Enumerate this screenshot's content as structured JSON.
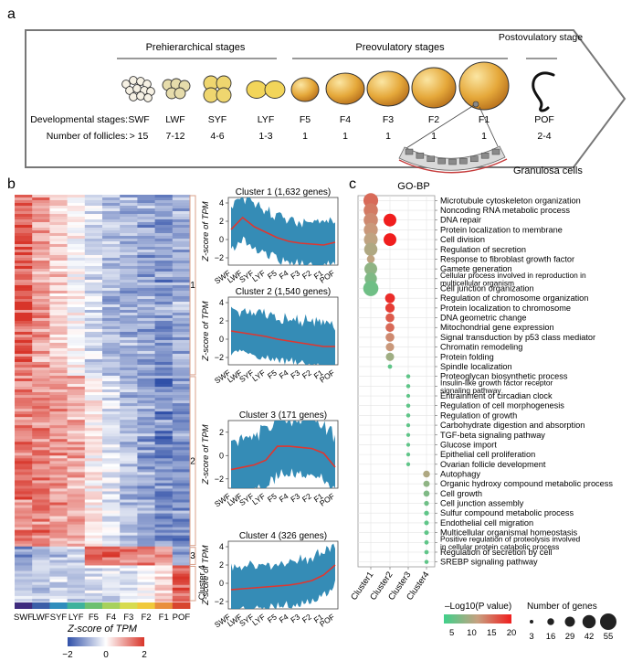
{
  "panels": {
    "a": {
      "label": "a",
      "stage_groups": [
        "Prehierarchical stages",
        "Preovulatory stages",
        "Postovulatory stage"
      ],
      "row_labels": {
        "stages": "Developmental stages:",
        "follicles": "Number of follicles:"
      },
      "stages": [
        "SWF",
        "LWF",
        "SYF",
        "LYF",
        "F5",
        "F4",
        "F3",
        "F2",
        "F1",
        "POF"
      ],
      "follicle_counts": [
        "> 15",
        "7-12",
        "4-6",
        "1-3",
        "1",
        "1",
        "1",
        "1",
        "1",
        "2-4"
      ],
      "inset_label": "Granulosa cells"
    },
    "b": {
      "label": "b",
      "heatmap_x": [
        "SWF",
        "LWF",
        "SYF",
        "LYF",
        "F5",
        "F4",
        "F3",
        "F2",
        "F1",
        "POF"
      ],
      "stage_colors": [
        "#3e2b7e",
        "#3b5ea8",
        "#2f8dbd",
        "#3eb29c",
        "#6cc070",
        "#a7d15c",
        "#d7db4f",
        "#f0c93b",
        "#e98f3c",
        "#d8452e"
      ],
      "cluster_labels": [
        "1",
        "2",
        "3",
        "Cluster 4"
      ],
      "colorbar": {
        "title": "Z-score of TPM",
        "ticks": [
          "−2",
          "0",
          "2"
        ],
        "low": "#3050a8",
        "mid": "#ffffff",
        "high": "#d8352a"
      },
      "mini_ylabel": "Z-score of TPM"
    },
    "c": {
      "label": "c",
      "title": "GO-BP",
      "legend_color_title": "–Log10(P value)",
      "legend_color_ticks": [
        "5",
        "10",
        "15",
        "20"
      ],
      "legend_size_title": "Number of genes",
      "legend_size_ticks": [
        "3",
        "16",
        "29",
        "42",
        "55"
      ]
    }
  },
  "chart_data": [
    {
      "type": "heatmap",
      "columns": [
        "SWF",
        "LWF",
        "SYF",
        "LYF",
        "F5",
        "F4",
        "F3",
        "F2",
        "F1",
        "POF"
      ],
      "clusters": [
        {
          "name": "1",
          "genes": 1632
        },
        {
          "name": "2",
          "genes": 1540
        },
        {
          "name": "3",
          "genes": 171
        },
        {
          "name": "Cluster 4",
          "genes": 326
        }
      ],
      "colorbar_range": [
        -2,
        2
      ]
    },
    {
      "type": "line",
      "title": "Cluster 1 (1,632 genes)",
      "ylabel": "Z-score of TPM",
      "x": [
        "SWF",
        "LWF",
        "SYF",
        "LYF",
        "F5",
        "F4",
        "F3",
        "F2",
        "F1",
        "POF"
      ],
      "y_ticks": [
        "−2",
        "0",
        "2",
        "4"
      ],
      "ylim": [
        -2.8,
        4.6
      ],
      "mean": [
        1.1,
        2.4,
        1.4,
        0.8,
        0.2,
        -0.2,
        -0.4,
        -0.5,
        -0.6,
        -0.3
      ]
    },
    {
      "type": "line",
      "title": "Cluster 2 (1,540 genes)",
      "ylabel": "Z-score of TPM",
      "x": [
        "SWF",
        "LWF",
        "SYF",
        "LYF",
        "F5",
        "F4",
        "F3",
        "F2",
        "F1",
        "POF"
      ],
      "y_ticks": [
        "−2",
        "0",
        "2",
        "4"
      ],
      "ylim": [
        -2.8,
        4.6
      ],
      "mean": [
        0.9,
        0.7,
        0.5,
        0.3,
        0.0,
        -0.2,
        -0.4,
        -0.6,
        -0.8,
        -0.8
      ]
    },
    {
      "type": "line",
      "title": "Cluster 3 (171 genes)",
      "ylabel": "Z-score of TPM",
      "x": [
        "SWF",
        "LWF",
        "SYF",
        "LYF",
        "F5",
        "F4",
        "F3",
        "F2",
        "F1",
        "POF"
      ],
      "y_ticks": [
        "−2",
        "0",
        "2"
      ],
      "ylim": [
        -2.8,
        3.0
      ],
      "mean": [
        -1.2,
        -1.0,
        -0.8,
        -0.4,
        0.8,
        0.8,
        0.7,
        0.6,
        0.2,
        -1.0
      ]
    },
    {
      "type": "line",
      "title": "Cluster 4 (326 genes)",
      "ylabel": "Z-score of TPM",
      "x": [
        "SWF",
        "LWF",
        "SYF",
        "LYF",
        "F5",
        "F4",
        "F3",
        "F2",
        "F1",
        "POF"
      ],
      "y_ticks": [
        "−2",
        "0",
        "2",
        "4"
      ],
      "ylim": [
        -2.8,
        4.6
      ],
      "mean": [
        -0.7,
        -0.6,
        -0.5,
        -0.4,
        -0.3,
        -0.2,
        0.0,
        0.3,
        0.9,
        2.0
      ]
    },
    {
      "type": "scatter",
      "title": "GO-BP",
      "x": [
        "Cluster1",
        "Cluster2",
        "Cluster3",
        "Cluster4"
      ],
      "color_range": [
        3,
        20
      ],
      "size_range": [
        3,
        55
      ],
      "terms": [
        {
          "term": "Microtubule cytoskeleton organization",
          "cluster": "Cluster1",
          "logp": 15,
          "genes": 48
        },
        {
          "term": "Noncoding RNA metabolic process",
          "cluster": "Cluster1",
          "logp": 14,
          "genes": 46
        },
        {
          "term": "DNA repair",
          "cluster": "Cluster1",
          "logp": 13,
          "genes": 46
        },
        {
          "term": "DNA repair",
          "cluster": "Cluster2",
          "logp": 20,
          "genes": 40
        },
        {
          "term": "Protein localization to membrane",
          "cluster": "Cluster1",
          "logp": 12,
          "genes": 45
        },
        {
          "term": "Cell division",
          "cluster": "Cluster1",
          "logp": 11,
          "genes": 44
        },
        {
          "term": "Cell division",
          "cluster": "Cluster2",
          "logp": 20,
          "genes": 40
        },
        {
          "term": "Regulation of secretion",
          "cluster": "Cluster1",
          "logp": 10,
          "genes": 42
        },
        {
          "term": "Response to fibroblast growth factor",
          "cluster": "Cluster1",
          "logp": 11,
          "genes": 20
        },
        {
          "term": "Gamete generation",
          "cluster": "Cluster1",
          "logp": 8,
          "genes": 40
        },
        {
          "term": "Cellular process involved in reproduction in multicellular organism",
          "cluster": "Cluster1",
          "logp": 7,
          "genes": 38
        },
        {
          "term": "Cell junction organization",
          "cluster": "Cluster1",
          "logp": 6,
          "genes": 50
        },
        {
          "term": "Regulation of chromosome organization",
          "cluster": "Cluster2",
          "logp": 19,
          "genes": 28
        },
        {
          "term": "Protein localization to chromosome",
          "cluster": "Cluster2",
          "logp": 18,
          "genes": 26
        },
        {
          "term": "DNA geometric change",
          "cluster": "Cluster2",
          "logp": 16,
          "genes": 24
        },
        {
          "term": "Mitochondrial gene expression",
          "cluster": "Cluster2",
          "logp": 15,
          "genes": 24
        },
        {
          "term": "Signal transduction by p53 class mediator",
          "cluster": "Cluster2",
          "logp": 13,
          "genes": 24
        },
        {
          "term": "Chromatin remodeling",
          "cluster": "Cluster2",
          "logp": 12,
          "genes": 22
        },
        {
          "term": "Protein folding",
          "cluster": "Cluster2",
          "logp": 9,
          "genes": 22
        },
        {
          "term": "Spindle localization",
          "cluster": "Cluster2",
          "logp": 5,
          "genes": 6
        },
        {
          "term": "Proteoglycan biosynthetic process",
          "cluster": "Cluster3",
          "logp": 5,
          "genes": 5
        },
        {
          "term": "Insulin-like growth factor receptor signaling pathway",
          "cluster": "Cluster3",
          "logp": 5,
          "genes": 5
        },
        {
          "term": "Entrainment of circadian clock",
          "cluster": "Cluster3",
          "logp": 5,
          "genes": 4
        },
        {
          "term": "Regulation of cell morphogenesis",
          "cluster": "Cluster3",
          "logp": 5,
          "genes": 5
        },
        {
          "term": "Regulation of growth",
          "cluster": "Cluster3",
          "logp": 5,
          "genes": 5
        },
        {
          "term": "Carbohydrate digestion and absorption",
          "cluster": "Cluster3",
          "logp": 5,
          "genes": 4
        },
        {
          "term": "TGF-beta signaling pathway",
          "cluster": "Cluster3",
          "logp": 5,
          "genes": 4
        },
        {
          "term": "Glucose import",
          "cluster": "Cluster3",
          "logp": 5,
          "genes": 4
        },
        {
          "term": "Epithelial cell proliferation",
          "cluster": "Cluster3",
          "logp": 5,
          "genes": 4
        },
        {
          "term": "Ovarian follicle development",
          "cluster": "Cluster3",
          "logp": 5,
          "genes": 4
        },
        {
          "term": "Autophagy",
          "cluster": "Cluster4",
          "logp": 10,
          "genes": 16
        },
        {
          "term": "Organic hydroxy compound metabolic process",
          "cluster": "Cluster4",
          "logp": 8,
          "genes": 14
        },
        {
          "term": "Cell growth",
          "cluster": "Cluster4",
          "logp": 7,
          "genes": 13
        },
        {
          "term": "Cell junction assembly",
          "cluster": "Cluster4",
          "logp": 6,
          "genes": 8
        },
        {
          "term": "Sulfur compound metabolic process",
          "cluster": "Cluster4",
          "logp": 5,
          "genes": 8
        },
        {
          "term": "Endothelial cell migration",
          "cluster": "Cluster4",
          "logp": 5,
          "genes": 7
        },
        {
          "term": "Multicellular organismal homeostasis",
          "cluster": "Cluster4",
          "logp": 5,
          "genes": 7
        },
        {
          "term": "Positive regulation of proteolysis involved in cellular protein catabolic process",
          "cluster": "Cluster4",
          "logp": 5,
          "genes": 6
        },
        {
          "term": "Regulation of secretion by cell",
          "cluster": "Cluster4",
          "logp": 5,
          "genes": 6
        },
        {
          "term": "SREBP signaling pathway",
          "cluster": "Cluster4",
          "logp": 5,
          "genes": 5
        }
      ]
    }
  ]
}
